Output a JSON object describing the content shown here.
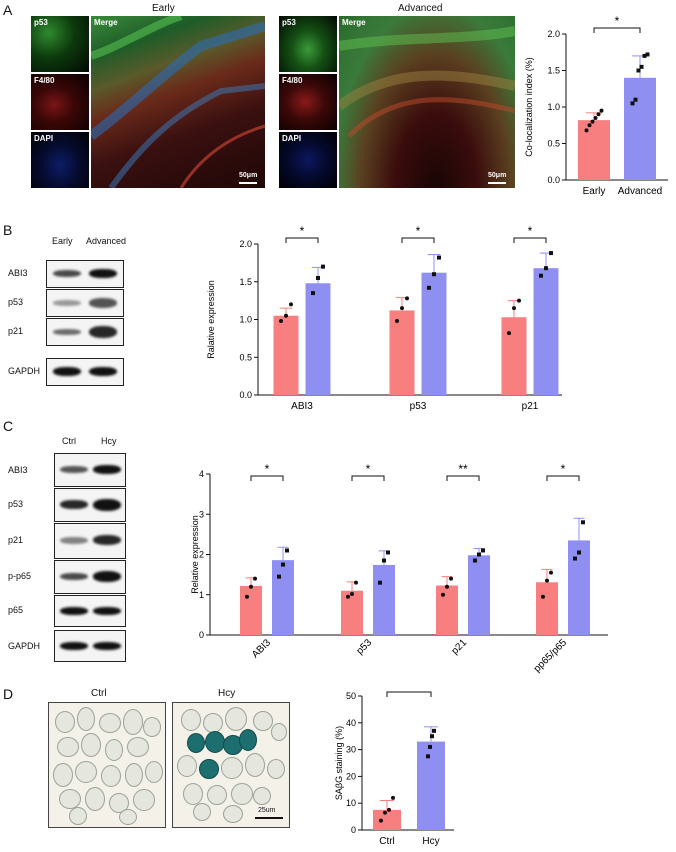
{
  "panel_labels": [
    "A",
    "B",
    "C",
    "D"
  ],
  "panel_a": {
    "groups": [
      {
        "title": "Early",
        "channels": [
          "p53",
          "F4/80",
          "DAPI"
        ],
        "merge": "Merge",
        "scale": "50μm"
      },
      {
        "title": "Advanced",
        "channels": [
          "p53",
          "F4/80",
          "DAPI"
        ],
        "merge": "Merge",
        "scale": "50μm"
      }
    ]
  },
  "panel_b": {
    "lanes": [
      "Early",
      "Advanced"
    ],
    "proteins": [
      "ABI3",
      "p53",
      "p21",
      "GAPDH"
    ]
  },
  "panel_c": {
    "lanes": [
      "Ctrl",
      "Hcy"
    ],
    "proteins": [
      "ABI3",
      "p53",
      "p21",
      "p-p65",
      "p65",
      "GAPDH"
    ]
  },
  "panel_d": {
    "images": [
      {
        "title": "Ctrl"
      },
      {
        "title": "Hcy",
        "scale": "25um"
      }
    ]
  },
  "colors": {
    "ctrl": "#f77f7f",
    "treat": "#8f8ff2"
  },
  "chart_data": [
    {
      "id": "A",
      "type": "bar",
      "categories": [
        "Early",
        "Advanced"
      ],
      "values": [
        0.82,
        1.4
      ],
      "errors": [
        0.1,
        0.3
      ],
      "points": [
        [
          0.68,
          0.75,
          0.8,
          0.85,
          0.9,
          0.95
        ],
        [
          1.05,
          1.1,
          1.5,
          1.55,
          1.7,
          1.72
        ]
      ],
      "ylabel": "Co-localization index (%)",
      "ylim": [
        0,
        2.0
      ],
      "yticks": [
        "0.0",
        "0.5",
        "1.0",
        "1.5",
        "2.0"
      ],
      "sig": [
        {
          "label": "*"
        }
      ]
    },
    {
      "id": "B",
      "type": "bar",
      "categories": [
        "ABI3",
        "p53",
        "p21"
      ],
      "series": [
        {
          "values": [
            1.05,
            1.12,
            1.03
          ],
          "errors": [
            0.1,
            0.17,
            0.22
          ]
        },
        {
          "values": [
            1.48,
            1.62,
            1.68
          ],
          "errors": [
            0.21,
            0.24,
            0.2
          ]
        }
      ],
      "points": [
        [
          [
            0.98,
            1.05,
            1.2
          ],
          [
            1.35,
            1.55,
            1.7
          ]
        ],
        [
          [
            0.98,
            1.15,
            1.28
          ],
          [
            1.42,
            1.6,
            1.82
          ]
        ],
        [
          [
            0.82,
            1.15,
            1.25
          ],
          [
            1.58,
            1.68,
            1.88
          ]
        ]
      ],
      "ylabel": "Ralative expression",
      "ylim": [
        0,
        2.0
      ],
      "yticks": [
        "0.0",
        "0.5",
        "1.0",
        "1.5",
        "2.0"
      ],
      "sig": [
        {
          "label": "*"
        },
        {
          "label": "*"
        },
        {
          "label": "*"
        }
      ]
    },
    {
      "id": "C",
      "type": "bar",
      "categories": [
        "ABI3",
        "p53",
        "p21",
        "pp65/p65"
      ],
      "series": [
        {
          "values": [
            1.22,
            1.1,
            1.23,
            1.31
          ],
          "errors": [
            0.2,
            0.22,
            0.22,
            0.32
          ]
        },
        {
          "values": [
            1.86,
            1.74,
            1.98,
            2.35
          ],
          "errors": [
            0.32,
            0.35,
            0.17,
            0.55
          ]
        }
      ],
      "points": [
        [
          [
            0.95,
            1.2,
            1.4
          ],
          [
            1.45,
            1.75,
            2.1
          ]
        ],
        [
          [
            0.95,
            1.02,
            1.3
          ],
          [
            1.3,
            1.85,
            2.05
          ]
        ],
        [
          [
            1.0,
            1.2,
            1.4
          ],
          [
            1.85,
            2.0,
            2.1
          ]
        ],
        [
          [
            0.95,
            1.35,
            1.55
          ],
          [
            1.9,
            2.05,
            2.8
          ]
        ]
      ],
      "ylabel": "Relative expression",
      "ylim": [
        0,
        4
      ],
      "yticks": [
        "0",
        "1",
        "2",
        "3",
        "4"
      ],
      "sig": [
        {
          "label": "*"
        },
        {
          "label": "*"
        },
        {
          "label": "**"
        },
        {
          "label": "*"
        }
      ]
    },
    {
      "id": "D",
      "type": "bar",
      "categories": [
        "Ctrl",
        "Hcy"
      ],
      "values": [
        7.5,
        33.0
      ],
      "errors": [
        3.5,
        5.5
      ],
      "points": [
        [
          3.5,
          6.5,
          7.5,
          12.0
        ],
        [
          27.5,
          31.0,
          35.0,
          37.0
        ]
      ],
      "ylabel": "SAβG staining (%)",
      "ylim": [
        0,
        50
      ],
      "yticks": [
        "0",
        "10",
        "20",
        "30",
        "40",
        "50"
      ],
      "sig": [
        {
          "label": "***"
        }
      ]
    }
  ]
}
